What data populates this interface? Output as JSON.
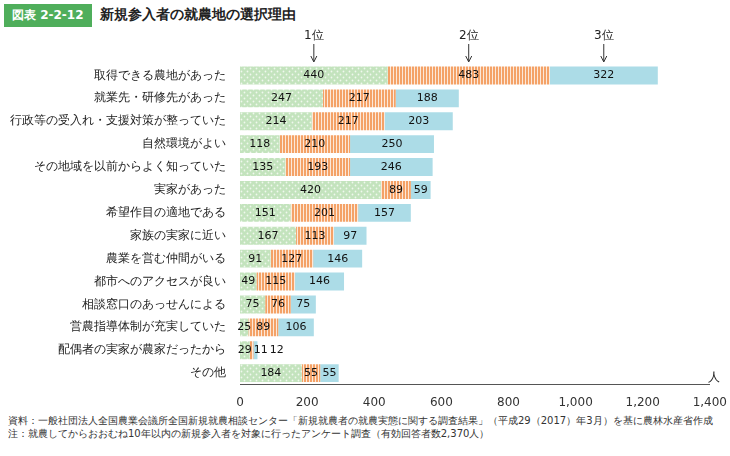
{
  "chart_data": {
    "type": "bar",
    "figure_label": "図表 2-2-12",
    "title": "新規参入者の就農地の選択理由",
    "orientation": "horizontal",
    "stacked": true,
    "data_labels": true,
    "grid": false,
    "xlabel": "人",
    "categories": [
      "取得できる農地があった",
      "就業先・研修先があった",
      "行政等の受入れ・支援対策が整っていた",
      "自然環境がよい",
      "その地域を以前からよく知っていた",
      "実家があった",
      "希望作目の適地である",
      "家族の実家に近い",
      "農業を営む仲間がいる",
      "都市へのアクセスが良い",
      "相談窓口のあっせんによる",
      "営農指導体制が充実していた",
      "配偶者の実家が農家だったから",
      "その他"
    ],
    "series": [
      {
        "name": "1位",
        "color": "#c3e3bd",
        "values": [
          440,
          247,
          214,
          118,
          135,
          420,
          151,
          167,
          91,
          49,
          75,
          25,
          29,
          184
        ]
      },
      {
        "name": "2位",
        "color": "#f4a267",
        "values": [
          483,
          217,
          217,
          210,
          193,
          89,
          201,
          113,
          127,
          115,
          76,
          89,
          11,
          55
        ]
      },
      {
        "name": "3位",
        "color": "#acdce7",
        "values": [
          322,
          188,
          203,
          250,
          246,
          59,
          157,
          97,
          146,
          146,
          75,
          106,
          12,
          55
        ]
      }
    ],
    "xlim": [
      0,
      1400
    ],
    "xticks": [
      0,
      200,
      400,
      600,
      800,
      {
        "value": 1000,
        "label": "1,000"
      },
      {
        "value": 1200,
        "label": "1,200"
      },
      {
        "value": 1400,
        "label": "1,400"
      }
    ],
    "annotations": [
      "資料：一般社団法人全国農業会議所全国新規就農相談センター「新規就農者の就農実態に関する調査結果」（平成29（2017）年3月）を基に農林水産省作成",
      "注：就農してからおおむね10年以内の新規参入者を対象に行ったアンケート調査（有効回答者数2,370人）"
    ]
  }
}
